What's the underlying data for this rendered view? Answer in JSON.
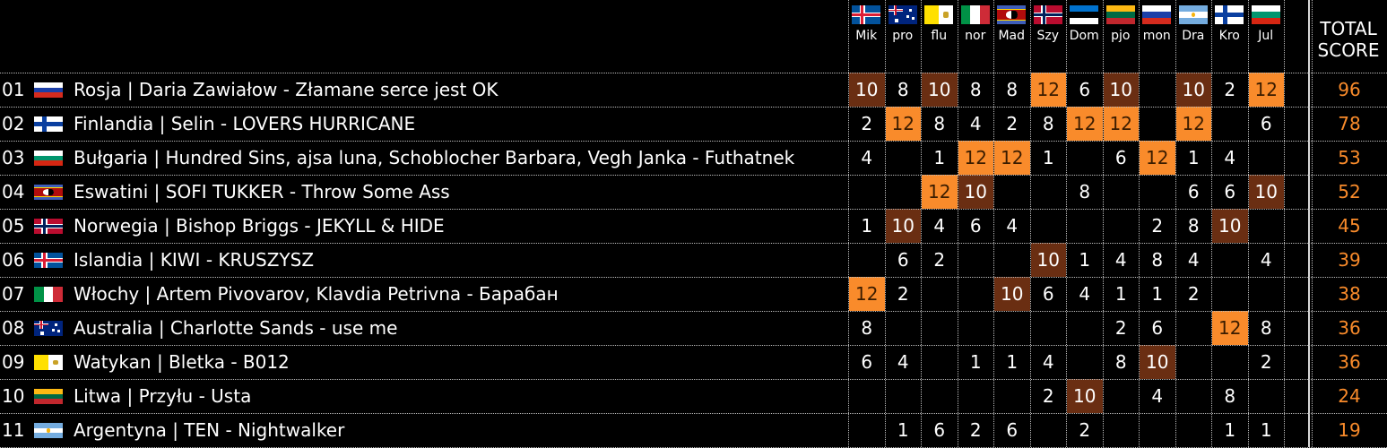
{
  "judges": [
    {
      "abbr": "Mik",
      "flag": "iceland-flag"
    },
    {
      "abbr": "pro",
      "flag": "australia-flag"
    },
    {
      "abbr": "flu",
      "flag": "vatican-flag"
    },
    {
      "abbr": "nor",
      "flag": "italy-flag"
    },
    {
      "abbr": "Mad",
      "flag": "eswatini-flag"
    },
    {
      "abbr": "Szy",
      "flag": "norway-flag"
    },
    {
      "abbr": "Dom",
      "flag": "estonia-flag"
    },
    {
      "abbr": "pjo",
      "flag": "lithuania-flag"
    },
    {
      "abbr": "mon",
      "flag": "russia-flag"
    },
    {
      "abbr": "Dra",
      "flag": "argentina-flag"
    },
    {
      "abbr": "Kro",
      "flag": "finland-flag"
    },
    {
      "abbr": "Jul",
      "flag": "bulgaria-flag"
    }
  ],
  "total_header": "TOTAL SCORE",
  "rows": [
    {
      "rank": "01",
      "flag": "russia-flag",
      "song": "Rosja | Daria Zawiałow - Złamane serce jest OK",
      "scores": [
        "10",
        "8",
        "10",
        "8",
        "8",
        "12",
        "6",
        "10",
        "",
        "10",
        "2",
        "12"
      ],
      "total": "96"
    },
    {
      "rank": "02",
      "flag": "finland-flag",
      "song": "Finlandia | Selin - LOVERS HURRICANE",
      "scores": [
        "2",
        "12",
        "8",
        "4",
        "2",
        "8",
        "12",
        "12",
        "",
        "12",
        "",
        "6"
      ],
      "total": "78"
    },
    {
      "rank": "03",
      "flag": "bulgaria-flag",
      "song": "Bułgaria | Hundred Sins, ajsa luna, Schoblocher Barbara, Vegh Janka - Futhatnek",
      "scores": [
        "4",
        "",
        "1",
        "12",
        "12",
        "1",
        "",
        "6",
        "12",
        "1",
        "4",
        ""
      ],
      "total": "53"
    },
    {
      "rank": "04",
      "flag": "eswatini-flag",
      "song": "Eswatini | SOFI TUKKER - Throw Some Ass",
      "scores": [
        "",
        "",
        "12",
        "10",
        "",
        "",
        "8",
        "",
        "",
        "6",
        "6",
        "10"
      ],
      "total": "52"
    },
    {
      "rank": "05",
      "flag": "norway-flag",
      "song": "Norwegia | Bishop Briggs - JEKYLL & HIDE",
      "scores": [
        "1",
        "10",
        "4",
        "6",
        "4",
        "",
        "",
        "",
        "2",
        "8",
        "10",
        ""
      ],
      "total": "45"
    },
    {
      "rank": "06",
      "flag": "iceland-flag",
      "song": "Islandia | KIWI - KRUSZYSZ",
      "scores": [
        "",
        "6",
        "2",
        "",
        "",
        "10",
        "1",
        "4",
        "8",
        "4",
        "",
        "4"
      ],
      "total": "39"
    },
    {
      "rank": "07",
      "flag": "italy-flag",
      "song": "Włochy | Artem Pivovarov, Klavdia Petrivna - Барабан",
      "scores": [
        "12",
        "2",
        "",
        "",
        "10",
        "6",
        "4",
        "1",
        "1",
        "2",
        "",
        ""
      ],
      "total": "38"
    },
    {
      "rank": "08",
      "flag": "australia-flag",
      "song": "Australia | Charlotte Sands - use me",
      "scores": [
        "8",
        "",
        "",
        "",
        "",
        "",
        "",
        "2",
        "6",
        "",
        "12",
        "8"
      ],
      "total": "36"
    },
    {
      "rank": "09",
      "flag": "vatican-flag",
      "song": "Watykan | Bletka - B012",
      "scores": [
        "6",
        "4",
        "",
        "1",
        "1",
        "4",
        "",
        "8",
        "10",
        "",
        "",
        "2"
      ],
      "total": "36"
    },
    {
      "rank": "10",
      "flag": "lithuania-flag",
      "song": "Litwa | Przyłu - Usta",
      "scores": [
        "",
        "",
        "",
        "",
        "",
        "2",
        "10",
        "",
        "4",
        "",
        "8",
        ""
      ],
      "total": "24"
    },
    {
      "rank": "11",
      "flag": "argentina-flag",
      "song": "Argentyna | TEN - Nightwalker",
      "scores": [
        "",
        "1",
        "6",
        "2",
        "6",
        "",
        "2",
        "",
        "",
        "",
        "1",
        "1"
      ],
      "total": "19"
    }
  ],
  "colors": {
    "twelve": "#f98b2b",
    "ten": "#6a2e12",
    "total_text": "#f98b2b"
  }
}
